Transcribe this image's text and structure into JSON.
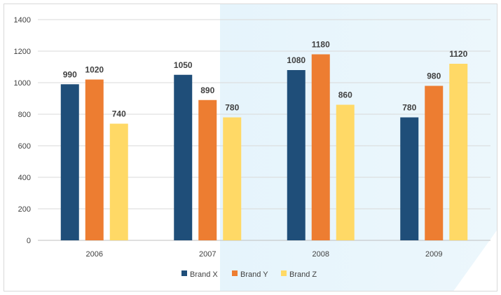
{
  "chart_data": {
    "type": "bar",
    "categories": [
      "2006",
      "2007",
      "2008",
      "2009"
    ],
    "series": [
      {
        "name": "Brand X",
        "values": [
          990,
          1050,
          1080,
          780
        ],
        "color": "#1f4e79"
      },
      {
        "name": "Brand Y",
        "values": [
          1020,
          890,
          1180,
          980
        ],
        "color": "#ed7d31"
      },
      {
        "name": "Brand Z",
        "values": [
          740,
          780,
          860,
          1120
        ],
        "color": "#ffd966"
      }
    ],
    "ylim": [
      0,
      1400
    ],
    "yticks": [
      0,
      200,
      400,
      600,
      800,
      1000,
      1200,
      1400
    ],
    "grid": true,
    "legend_position": "bottom",
    "title": "",
    "xlabel": "",
    "ylabel": ""
  }
}
